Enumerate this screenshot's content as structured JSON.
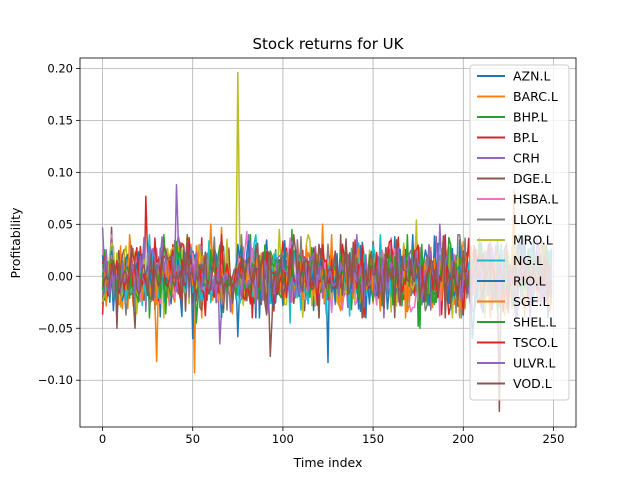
{
  "chart_data": {
    "type": "line",
    "title": "Stock returns for UK",
    "xlabel": "Time index",
    "ylabel": "Profitability",
    "xlim": [
      -12.5,
      262.5
    ],
    "ylim": [
      -0.145,
      0.21
    ],
    "xticks": [
      0,
      50,
      100,
      150,
      200,
      250
    ],
    "xtick_labels": [
      "0",
      "50",
      "100",
      "150",
      "200",
      "250"
    ],
    "yticks": [
      -0.1,
      -0.05,
      0.0,
      0.05,
      0.1,
      0.15,
      0.2
    ],
    "ytick_labels": [
      "−0.10",
      "−0.05",
      "0.00",
      "0.05",
      "0.10",
      "0.15",
      "0.20"
    ],
    "grid": true,
    "legend_position": "upper right",
    "n_points": 250,
    "series": [
      {
        "name": "AZN.L",
        "color": "#1f77b4",
        "peaks": [
          [
            75,
            -0.058
          ],
          [
            125,
            -0.083
          ],
          [
            198,
            0.035
          ]
        ]
      },
      {
        "name": "BARC.L",
        "color": "#ff7f0e",
        "peaks": [
          [
            30,
            -0.082
          ],
          [
            51,
            -0.093
          ],
          [
            66,
            0.047
          ],
          [
            122,
            0.05
          ],
          [
            228,
            0.083
          ]
        ]
      },
      {
        "name": "BHP.L",
        "color": "#2ca02c",
        "peaks": [
          [
            52,
            -0.045
          ],
          [
            105,
            0.045
          ],
          [
            175,
            -0.048
          ]
        ]
      },
      {
        "name": "BP.L",
        "color": "#d62728",
        "peaks": [
          [
            0,
            -0.037
          ],
          [
            24,
            0.077
          ],
          [
            45,
            0.03
          ],
          [
            206,
            0.03
          ]
        ]
      },
      {
        "name": "CRH",
        "color": "#9467bd",
        "peaks": [
          [
            0,
            0.047
          ],
          [
            41,
            0.088
          ],
          [
            65,
            -0.065
          ],
          [
            120,
            -0.04
          ]
        ]
      },
      {
        "name": "DGE.L",
        "color": "#8c564b",
        "peaks": [
          [
            5,
            0.047
          ],
          [
            18,
            -0.05
          ],
          [
            93,
            -0.077
          ],
          [
            220,
            -0.13
          ]
        ]
      },
      {
        "name": "HSBA.L",
        "color": "#e377c2",
        "peaks": [
          [
            80,
            0.043
          ],
          [
            160,
            0.037
          ]
        ]
      },
      {
        "name": "LLOY.L",
        "color": "#7f7f7f",
        "peaks": [
          [
            110,
            0.038
          ],
          [
            215,
            0.035
          ]
        ]
      },
      {
        "name": "MRO.L",
        "color": "#bcbd22",
        "peaks": [
          [
            75,
            0.196
          ],
          [
            174,
            0.054
          ],
          [
            98,
            0.045
          ]
        ]
      },
      {
        "name": "NG.L",
        "color": "#17becf",
        "peaks": [
          [
            104,
            -0.045
          ],
          [
            150,
            0.03
          ],
          [
            212,
            0.025
          ]
        ]
      },
      {
        "name": "RIO.L",
        "color": "#1f77b4",
        "peaks": [
          [
            50,
            -0.06
          ],
          [
            205,
            -0.06
          ],
          [
            230,
            0.03
          ]
        ]
      },
      {
        "name": "SGE.L",
        "color": "#ff7f0e",
        "peaks": [
          [
            60,
            0.05
          ],
          [
            245,
            0.03
          ]
        ]
      },
      {
        "name": "SHEL.L",
        "color": "#2ca02c",
        "peaks": [
          [
            176,
            -0.05
          ],
          [
            90,
            0.03
          ]
        ]
      },
      {
        "name": "TSCO.L",
        "color": "#d62728",
        "peaks": [
          [
            140,
            0.035
          ],
          [
            225,
            -0.035
          ]
        ]
      },
      {
        "name": "ULVR.L",
        "color": "#9467bd",
        "peaks": [
          [
            187,
            0.05
          ],
          [
            145,
            -0.03
          ]
        ]
      },
      {
        "name": "VOD.L",
        "color": "#8c564b",
        "peaks": [
          [
            8,
            -0.05
          ],
          [
            190,
            -0.04
          ]
        ]
      }
    ]
  }
}
